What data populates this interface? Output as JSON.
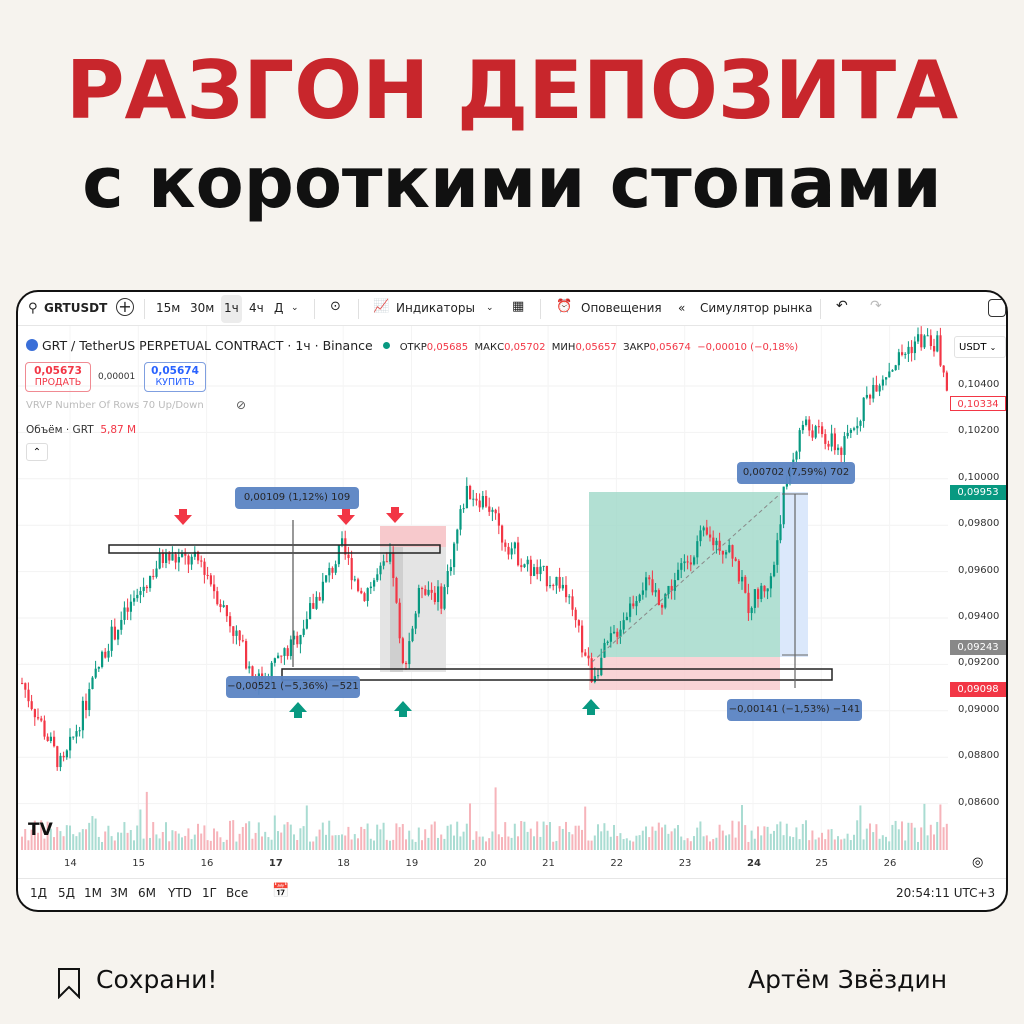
{
  "headline": {
    "title": "РАЗГОН ДЕПОЗИТА",
    "subtitle": "с короткими стопами",
    "title_color": "#c8262c"
  },
  "toolbar": {
    "symbol": "GRTUSDT",
    "intervals": [
      "15м",
      "30м",
      "1ч",
      "4ч",
      "Д"
    ],
    "active_interval": "1ч",
    "indicators": "Индикаторы",
    "alerts": "Оповещения",
    "replay": "Симулятор рынка"
  },
  "legend": {
    "title": "GRT / TetherUS PERPETUAL CONTRACT · 1ч · Binance",
    "open_label": "ОТКР",
    "open": "0,05685",
    "high_label": "МАКС",
    "high": "0,05702",
    "low_label": "МИН",
    "low": "0,05657",
    "close_label": "ЗАКР",
    "close": "0,05674",
    "change": "−0,00010 (−0,18%)",
    "sell_price": "0,05673",
    "sell_label": "ПРОДАТЬ",
    "spread": "0,00001",
    "buy_price": "0,05674",
    "buy_label": "КУПИТЬ",
    "vrvp": "VRVP Number Of Rows 70 Up/Down",
    "volume_label": "Объём · GRT",
    "volume_value": "5,87 M"
  },
  "price_axis": {
    "currency": "USDT",
    "ticks": [
      "0,10400",
      "0,10200",
      "0,10000",
      "0,09800",
      "0,09600",
      "0,09400",
      "0,09200",
      "0,09000",
      "0,08800",
      "0,08600"
    ],
    "badges": [
      {
        "value": "0,10334",
        "color": "#f23645",
        "style": "outline"
      },
      {
        "value": "0,09953",
        "color": "#089981"
      },
      {
        "value": "0,09243",
        "color": "#888888"
      },
      {
        "value": "0,09098",
        "color": "#f23645"
      }
    ]
  },
  "time_axis": {
    "dates": [
      "14",
      "15",
      "16",
      "17",
      "18",
      "19",
      "20",
      "21",
      "22",
      "23",
      "24",
      "25",
      "26"
    ],
    "bold": [
      "17",
      "24"
    ]
  },
  "annotations": {
    "measure_top": "0,00109 (1,12%) 109",
    "measure_bottom": "−0,00521 (−5,36%) −521",
    "target": "0,00702 (7,59%) 702",
    "stop": "−0,00141 (−1,53%) −141"
  },
  "bottom_bar": {
    "ranges": [
      "1Д",
      "5Д",
      "1М",
      "3М",
      "6М",
      "YTD",
      "1Г",
      "Все"
    ],
    "clock": "20:54:11 UTC+3"
  },
  "colors": {
    "up": "#089981",
    "down": "#f23645",
    "background": "#f6f3ee"
  },
  "footer": {
    "save": "Сохрани!",
    "author": "Артём Звёздин"
  }
}
